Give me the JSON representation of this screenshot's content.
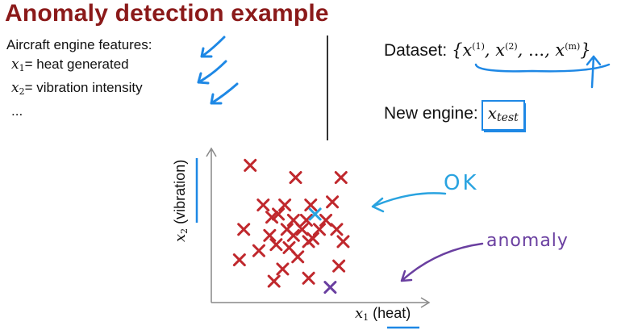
{
  "title": "Anomaly detection example",
  "features": {
    "heading": "Aircraft engine features:",
    "items": [
      {
        "var": "x",
        "sub": "1",
        "text": "= heat generated"
      },
      {
        "var": "x",
        "sub": "2",
        "text": "= vibration intensity"
      }
    ],
    "more": "..."
  },
  "dataset": {
    "label": "Dataset:",
    "var": "x",
    "sup1": "(1)",
    "sup2": "(2)",
    "ellipsis": "...",
    "supm": "(m)"
  },
  "new_engine": {
    "label": "New engine:",
    "var": "x",
    "sub": "test"
  },
  "annotations": {
    "ok": "OK",
    "anomaly": "anomaly"
  },
  "colors": {
    "normal": "#c0282d",
    "ok": "#29a3e0",
    "anomaly": "#6a3fa0",
    "title": "#8b1a1a"
  },
  "chart_data": {
    "type": "scatter",
    "xlabel": {
      "var": "x",
      "sub": "1",
      "text": "(heat)"
    },
    "ylabel": {
      "var": "x",
      "sub": "2",
      "text": "(vibration)"
    },
    "series": [
      {
        "points": [
          [
            0.18,
            0.9
          ],
          [
            0.39,
            0.82
          ],
          [
            0.6,
            0.82
          ],
          [
            0.24,
            0.64
          ],
          [
            0.34,
            0.64
          ],
          [
            0.46,
            0.64
          ],
          [
            0.56,
            0.66
          ],
          [
            0.28,
            0.56
          ],
          [
            0.31,
            0.58
          ],
          [
            0.38,
            0.54
          ],
          [
            0.44,
            0.54
          ],
          [
            0.53,
            0.54
          ],
          [
            0.35,
            0.48
          ],
          [
            0.42,
            0.48
          ],
          [
            0.5,
            0.48
          ],
          [
            0.15,
            0.48
          ],
          [
            0.27,
            0.44
          ],
          [
            0.38,
            0.44
          ],
          [
            0.45,
            0.4
          ],
          [
            0.3,
            0.38
          ],
          [
            0.36,
            0.36
          ],
          [
            0.47,
            0.42
          ],
          [
            0.58,
            0.48
          ],
          [
            0.61,
            0.4
          ],
          [
            0.22,
            0.34
          ],
          [
            0.13,
            0.28
          ],
          [
            0.4,
            0.3
          ],
          [
            0.33,
            0.22
          ],
          [
            0.45,
            0.16
          ],
          [
            0.59,
            0.24
          ],
          [
            0.29,
            0.14
          ]
        ]
      },
      {
        "points": [
          [
            0.48,
            0.58
          ]
        ]
      },
      {
        "points": [
          [
            0.55,
            0.1
          ]
        ]
      }
    ]
  }
}
